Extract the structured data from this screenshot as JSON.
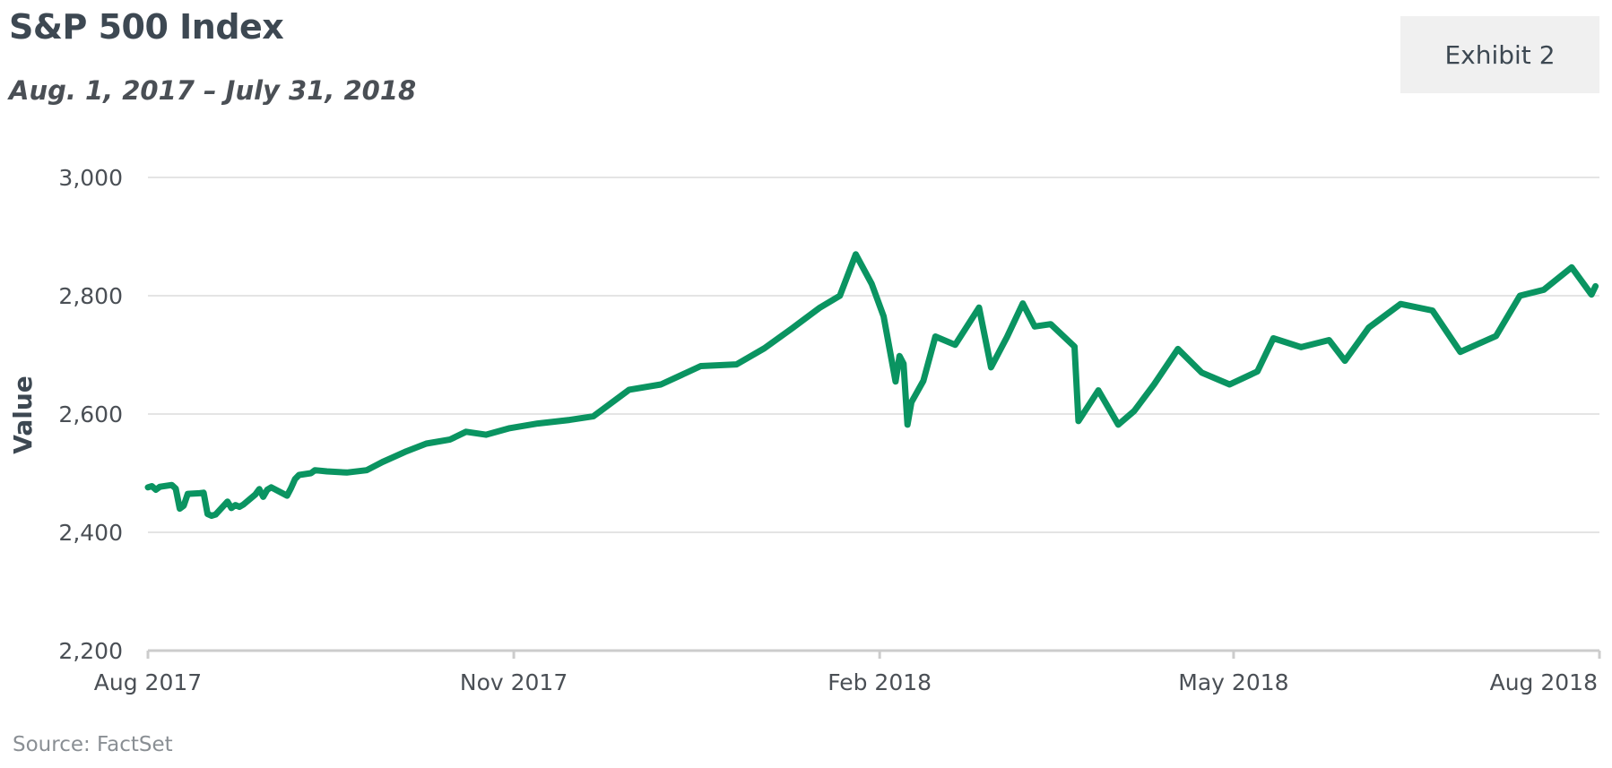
{
  "header": {
    "title": "S&P 500 Index",
    "subtitle": "Aug. 1, 2017 – July 31, 2018",
    "exhibit": "Exhibit 2"
  },
  "footer": {
    "source": "Source: FactSet"
  },
  "colors": {
    "line": "#0a9461",
    "grid": "#dcdcdc",
    "axis": "#cccccc"
  },
  "chart_data": {
    "type": "line",
    "title": "S&P 500 Index",
    "subtitle": "Aug. 1, 2017 – July 31, 2018",
    "ylabel": "Value",
    "xlabel": "",
    "ylim": [
      2200,
      3000
    ],
    "yticks": [
      2200,
      2400,
      2600,
      2800,
      3000
    ],
    "ytick_labels": [
      "2,200",
      "2,400",
      "2,600",
      "2,800",
      "3,000"
    ],
    "xlim": [
      "2017-08-01",
      "2018-08-01"
    ],
    "xticks": [
      "2017-08-01",
      "2017-11-01",
      "2018-02-01",
      "2018-05-01",
      "2018-08-01"
    ],
    "xtick_labels": [
      "Aug 2017",
      "Nov 2017",
      "Feb 2018",
      "May 2018",
      "Aug 2018"
    ],
    "grid": true,
    "series": [
      {
        "x": [
          "2017-08-01",
          "2017-08-02",
          "2017-08-03",
          "2017-08-04",
          "2017-08-07",
          "2017-08-08",
          "2017-08-09",
          "2017-08-10",
          "2017-08-11",
          "2017-08-14",
          "2017-08-15",
          "2017-08-16",
          "2017-08-17",
          "2017-08-18",
          "2017-08-21",
          "2017-08-22",
          "2017-08-23",
          "2017-08-24",
          "2017-08-25",
          "2017-08-28",
          "2017-08-29",
          "2017-08-30",
          "2017-08-31",
          "2017-09-01",
          "2017-09-05",
          "2017-09-06",
          "2017-09-07",
          "2017-09-08",
          "2017-09-11",
          "2017-09-12",
          "2017-09-15",
          "2017-09-20",
          "2017-09-25",
          "2017-09-29",
          "2017-10-05",
          "2017-10-10",
          "2017-10-16",
          "2017-10-20",
          "2017-10-25",
          "2017-10-31",
          "2017-11-07",
          "2017-11-15",
          "2017-11-21",
          "2017-11-30",
          "2017-12-08",
          "2017-12-18",
          "2017-12-27",
          "2018-01-03",
          "2018-01-10",
          "2018-01-17",
          "2018-01-22",
          "2018-01-26",
          "2018-01-30",
          "2018-02-02",
          "2018-02-05",
          "2018-02-06",
          "2018-02-07",
          "2018-02-08",
          "2018-02-09",
          "2018-02-12",
          "2018-02-15",
          "2018-02-20",
          "2018-02-26",
          "2018-03-01",
          "2018-03-05",
          "2018-03-09",
          "2018-03-12",
          "2018-03-16",
          "2018-03-22",
          "2018-03-23",
          "2018-03-28",
          "2018-04-02",
          "2018-04-06",
          "2018-04-11",
          "2018-04-17",
          "2018-04-23",
          "2018-04-30",
          "2018-05-07",
          "2018-05-11",
          "2018-05-18",
          "2018-05-25",
          "2018-05-29",
          "2018-06-04",
          "2018-06-12",
          "2018-06-20",
          "2018-06-27",
          "2018-07-06",
          "2018-07-12",
          "2018-07-18",
          "2018-07-25",
          "2018-07-30",
          "2018-07-31"
        ],
        "values": [
          2476,
          2478,
          2472,
          2477,
          2480,
          2474,
          2440,
          2445,
          2465,
          2466,
          2467,
          2431,
          2428,
          2430,
          2452,
          2441,
          2446,
          2443,
          2447,
          2464,
          2473,
          2460,
          2472,
          2476,
          2462,
          2475,
          2490,
          2497,
          2500,
          2505,
          2503,
          2501,
          2505,
          2519,
          2537,
          2550,
          2557,
          2570,
          2565,
          2576,
          2584,
          2590,
          2596,
          2641,
          2650,
          2681,
          2684,
          2711,
          2745,
          2780,
          2800,
          2870,
          2820,
          2765,
          2655,
          2698,
          2685,
          2582,
          2620,
          2656,
          2731,
          2717,
          2780,
          2679,
          2730,
          2787,
          2748,
          2752,
          2714,
          2588,
          2640,
          2582,
          2605,
          2650,
          2710,
          2670,
          2650,
          2672,
          2728,
          2713,
          2725,
          2690,
          2746,
          2786,
          2775,
          2705,
          2732,
          2800,
          2810,
          2848,
          2802,
          2816
        ]
      }
    ]
  }
}
